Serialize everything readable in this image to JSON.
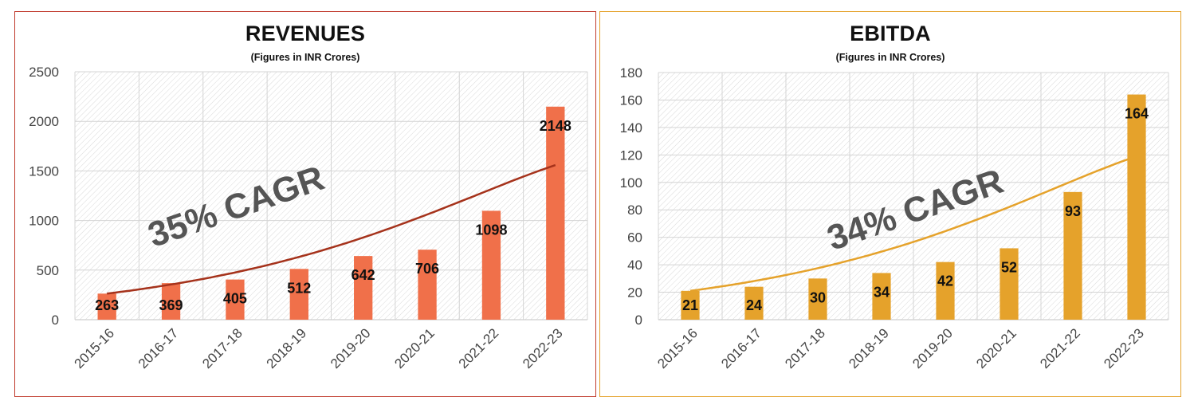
{
  "chart_data": [
    {
      "type": "bar",
      "title": "REVENUES",
      "subtitle": "(Figures in INR Crores)",
      "categories": [
        "2015-16",
        "2016-17",
        "2017-18",
        "2018-19",
        "2019-20",
        "2020-21",
        "2021-22",
        "2022-23"
      ],
      "values": [
        263,
        369,
        405,
        512,
        642,
        706,
        1098,
        2148
      ],
      "ylim": [
        0,
        2500
      ],
      "yticks": [
        0,
        500,
        1000,
        1500,
        2000,
        2500
      ],
      "annotation": "35% CAGR",
      "bar_color": "#f0704a",
      "trend_color": "#a5321b",
      "grid": true,
      "legend": "none"
    },
    {
      "type": "bar",
      "title": "EBITDA",
      "subtitle": "(Figures in INR Crores)",
      "categories": [
        "2015-16",
        "2016-17",
        "2017-18",
        "2018-19",
        "2019-20",
        "2020-21",
        "2021-22",
        "2022-23"
      ],
      "values": [
        21,
        24,
        30,
        34,
        42,
        52,
        93,
        164
      ],
      "ylim": [
        0,
        180
      ],
      "yticks": [
        0,
        20,
        40,
        60,
        80,
        100,
        120,
        140,
        160,
        180
      ],
      "annotation": "34% CAGR",
      "bar_color": "#e5a22b",
      "trend_color": "#e5a22b",
      "grid": true,
      "legend": "none"
    }
  ]
}
